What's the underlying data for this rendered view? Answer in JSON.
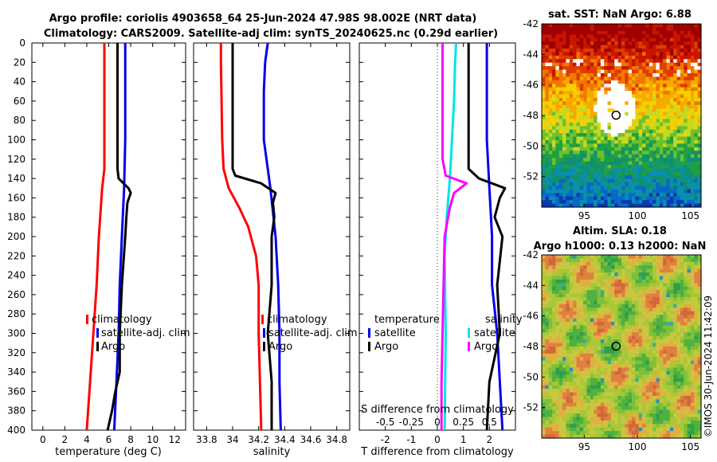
{
  "header": {
    "line1": "Argo profile: coriolis 4903658_64 25-Jun-2024 47.98S 98.002E (NRT data)",
    "line2": "Climatology: CARS2009. Satellite-adj clim: synTS_20240625.nc (0.29d earlier)"
  },
  "watermark": "©IMOS 30-Jun-2024 11:42:09",
  "colors": {
    "climatology": "#ff0000",
    "satellite": "#0000ee",
    "argo": "#000000",
    "sal_satellite": "#00e5e5",
    "sal_argo": "#ff00ff"
  },
  "chart_data": [
    {
      "id": "temperature",
      "type": "line",
      "xlabel": "temperature (deg C)",
      "ylabel": "",
      "xlim": [
        -1,
        13
      ],
      "ylim": [
        400,
        0
      ],
      "xticks": [
        0,
        2,
        4,
        6,
        8,
        10,
        12
      ],
      "yticks": [
        0,
        20,
        40,
        60,
        80,
        100,
        120,
        140,
        160,
        180,
        200,
        220,
        240,
        260,
        280,
        300,
        320,
        340,
        360,
        380,
        400
      ],
      "legend": [
        "climatology",
        "satellite-adj. clim",
        "Argo"
      ],
      "series": [
        {
          "name": "climatology",
          "color": "#ff0000",
          "depth": [
            0,
            100,
            130,
            150,
            200,
            250,
            300,
            350,
            400
          ],
          "values": [
            5.6,
            5.6,
            5.6,
            5.4,
            5.1,
            4.9,
            4.6,
            4.3,
            4.0
          ]
        },
        {
          "name": "satellite-adj. clim",
          "color": "#0000ee",
          "depth": [
            0,
            100,
            150,
            200,
            250,
            300,
            350,
            400
          ],
          "values": [
            7.5,
            7.5,
            7.4,
            7.2,
            7.0,
            6.9,
            6.7,
            6.5
          ]
        },
        {
          "name": "Argo",
          "color": "#000000",
          "depth": [
            0,
            130,
            140,
            150,
            155,
            165,
            180,
            200,
            250,
            300,
            340,
            360,
            380,
            400
          ],
          "values": [
            6.8,
            6.8,
            6.9,
            7.8,
            8.0,
            7.7,
            7.6,
            7.5,
            7.2,
            7.0,
            7.0,
            6.6,
            6.3,
            5.9
          ]
        }
      ]
    },
    {
      "id": "salinity",
      "type": "line",
      "xlabel": "salinity",
      "ylabel": "",
      "xlim": [
        33.7,
        34.9
      ],
      "ylim": [
        400,
        0
      ],
      "xticks": [
        33.8,
        34,
        34.2,
        34.4,
        34.6,
        34.8
      ],
      "legend": [
        "climatology",
        "satellite-adj. clim",
        "Argo"
      ],
      "series": [
        {
          "name": "climatology",
          "color": "#ff0000",
          "depth": [
            0,
            20,
            100,
            130,
            150,
            170,
            190,
            220,
            250,
            300,
            350,
            400
          ],
          "values": [
            33.91,
            33.91,
            33.92,
            33.93,
            33.97,
            34.05,
            34.12,
            34.18,
            34.2,
            34.2,
            34.21,
            34.22
          ]
        },
        {
          "name": "satellite-adj. clim",
          "color": "#0000ee",
          "depth": [
            0,
            20,
            50,
            100,
            150,
            200,
            250,
            300,
            350,
            400
          ],
          "values": [
            34.27,
            34.25,
            34.24,
            34.24,
            34.29,
            34.33,
            34.35,
            34.36,
            34.36,
            34.37
          ]
        },
        {
          "name": "Argo",
          "color": "#000000",
          "depth": [
            0,
            130,
            137,
            145,
            155,
            165,
            180,
            200,
            250,
            300,
            350,
            400
          ],
          "values": [
            34.0,
            34.0,
            34.02,
            34.22,
            34.33,
            34.31,
            34.32,
            34.3,
            34.3,
            34.27,
            34.3,
            34.3
          ]
        }
      ]
    },
    {
      "id": "difference",
      "type": "line",
      "xlabel": "T difference from climatology",
      "ylabel": "",
      "xlim": [
        -3,
        3
      ],
      "ylim": [
        400,
        0
      ],
      "xticks": [
        -2,
        -1,
        0,
        1,
        2
      ],
      "top_axis_label": "S difference from climatology",
      "top_ticks": [
        "-0.5",
        "-0.25",
        "0",
        "0.25",
        "0.5"
      ],
      "top_ticks_s": [
        -0.5,
        -0.25,
        0,
        0.25,
        0.5
      ],
      "legend_title_left": "temperature",
      "legend_title_right": "salinity",
      "legend": [
        "satellite",
        "Argo",
        "satellite",
        "Argo"
      ],
      "series": [
        {
          "name": "T satellite",
          "color": "#0000ee",
          "depth": [
            0,
            100,
            150,
            200,
            250,
            300,
            350,
            400
          ],
          "values": [
            1.9,
            1.9,
            2.0,
            2.1,
            2.1,
            2.3,
            2.4,
            2.5
          ]
        },
        {
          "name": "T Argo",
          "color": "#000000",
          "depth": [
            0,
            130,
            140,
            150,
            160,
            180,
            200,
            250,
            300,
            350,
            400
          ],
          "values": [
            1.2,
            1.2,
            1.6,
            2.6,
            2.4,
            2.2,
            2.5,
            2.3,
            2.4,
            2.0,
            1.9
          ]
        },
        {
          "name": "S satellite",
          "color": "#00e5e5",
          "depth": [
            0,
            20,
            60,
            100,
            140,
            180,
            220,
            300,
            400
          ],
          "values": [
            0.18,
            0.17,
            0.16,
            0.14,
            0.12,
            0.09,
            0.07,
            0.08,
            0.07
          ]
        },
        {
          "name": "S Argo",
          "color": "#ff00ff",
          "depth": [
            0,
            120,
            137,
            145,
            155,
            170,
            200,
            250,
            300,
            350,
            400
          ],
          "values": [
            0.05,
            0.05,
            0.08,
            0.28,
            0.16,
            0.12,
            0.07,
            0.06,
            0.05,
            0.04,
            0.04
          ]
        }
      ]
    },
    {
      "id": "sst_map",
      "type": "heatmap",
      "title": "sat. SST: NaN Argo: 6.88",
      "xticks": [
        95,
        100,
        105
      ],
      "yticks": [
        -42,
        -44,
        -46,
        -48,
        -50,
        -52
      ],
      "xlim": [
        91,
        106
      ],
      "ylim": [
        -54,
        -42
      ],
      "marker": {
        "lon": 98.0,
        "lat": -47.98
      }
    },
    {
      "id": "sla_map",
      "type": "heatmap",
      "title_line1": "Altim. SLA: 0.18",
      "title_line2": "Argo h1000: 0.13 h2000: NaN",
      "xticks": [
        95,
        100,
        105
      ],
      "yticks": [
        -42,
        -44,
        -46,
        -48,
        -50,
        -52
      ],
      "xlim": [
        91,
        106
      ],
      "ylim": [
        -54,
        -42
      ],
      "marker": {
        "lon": 98.0,
        "lat": -47.98
      }
    }
  ]
}
